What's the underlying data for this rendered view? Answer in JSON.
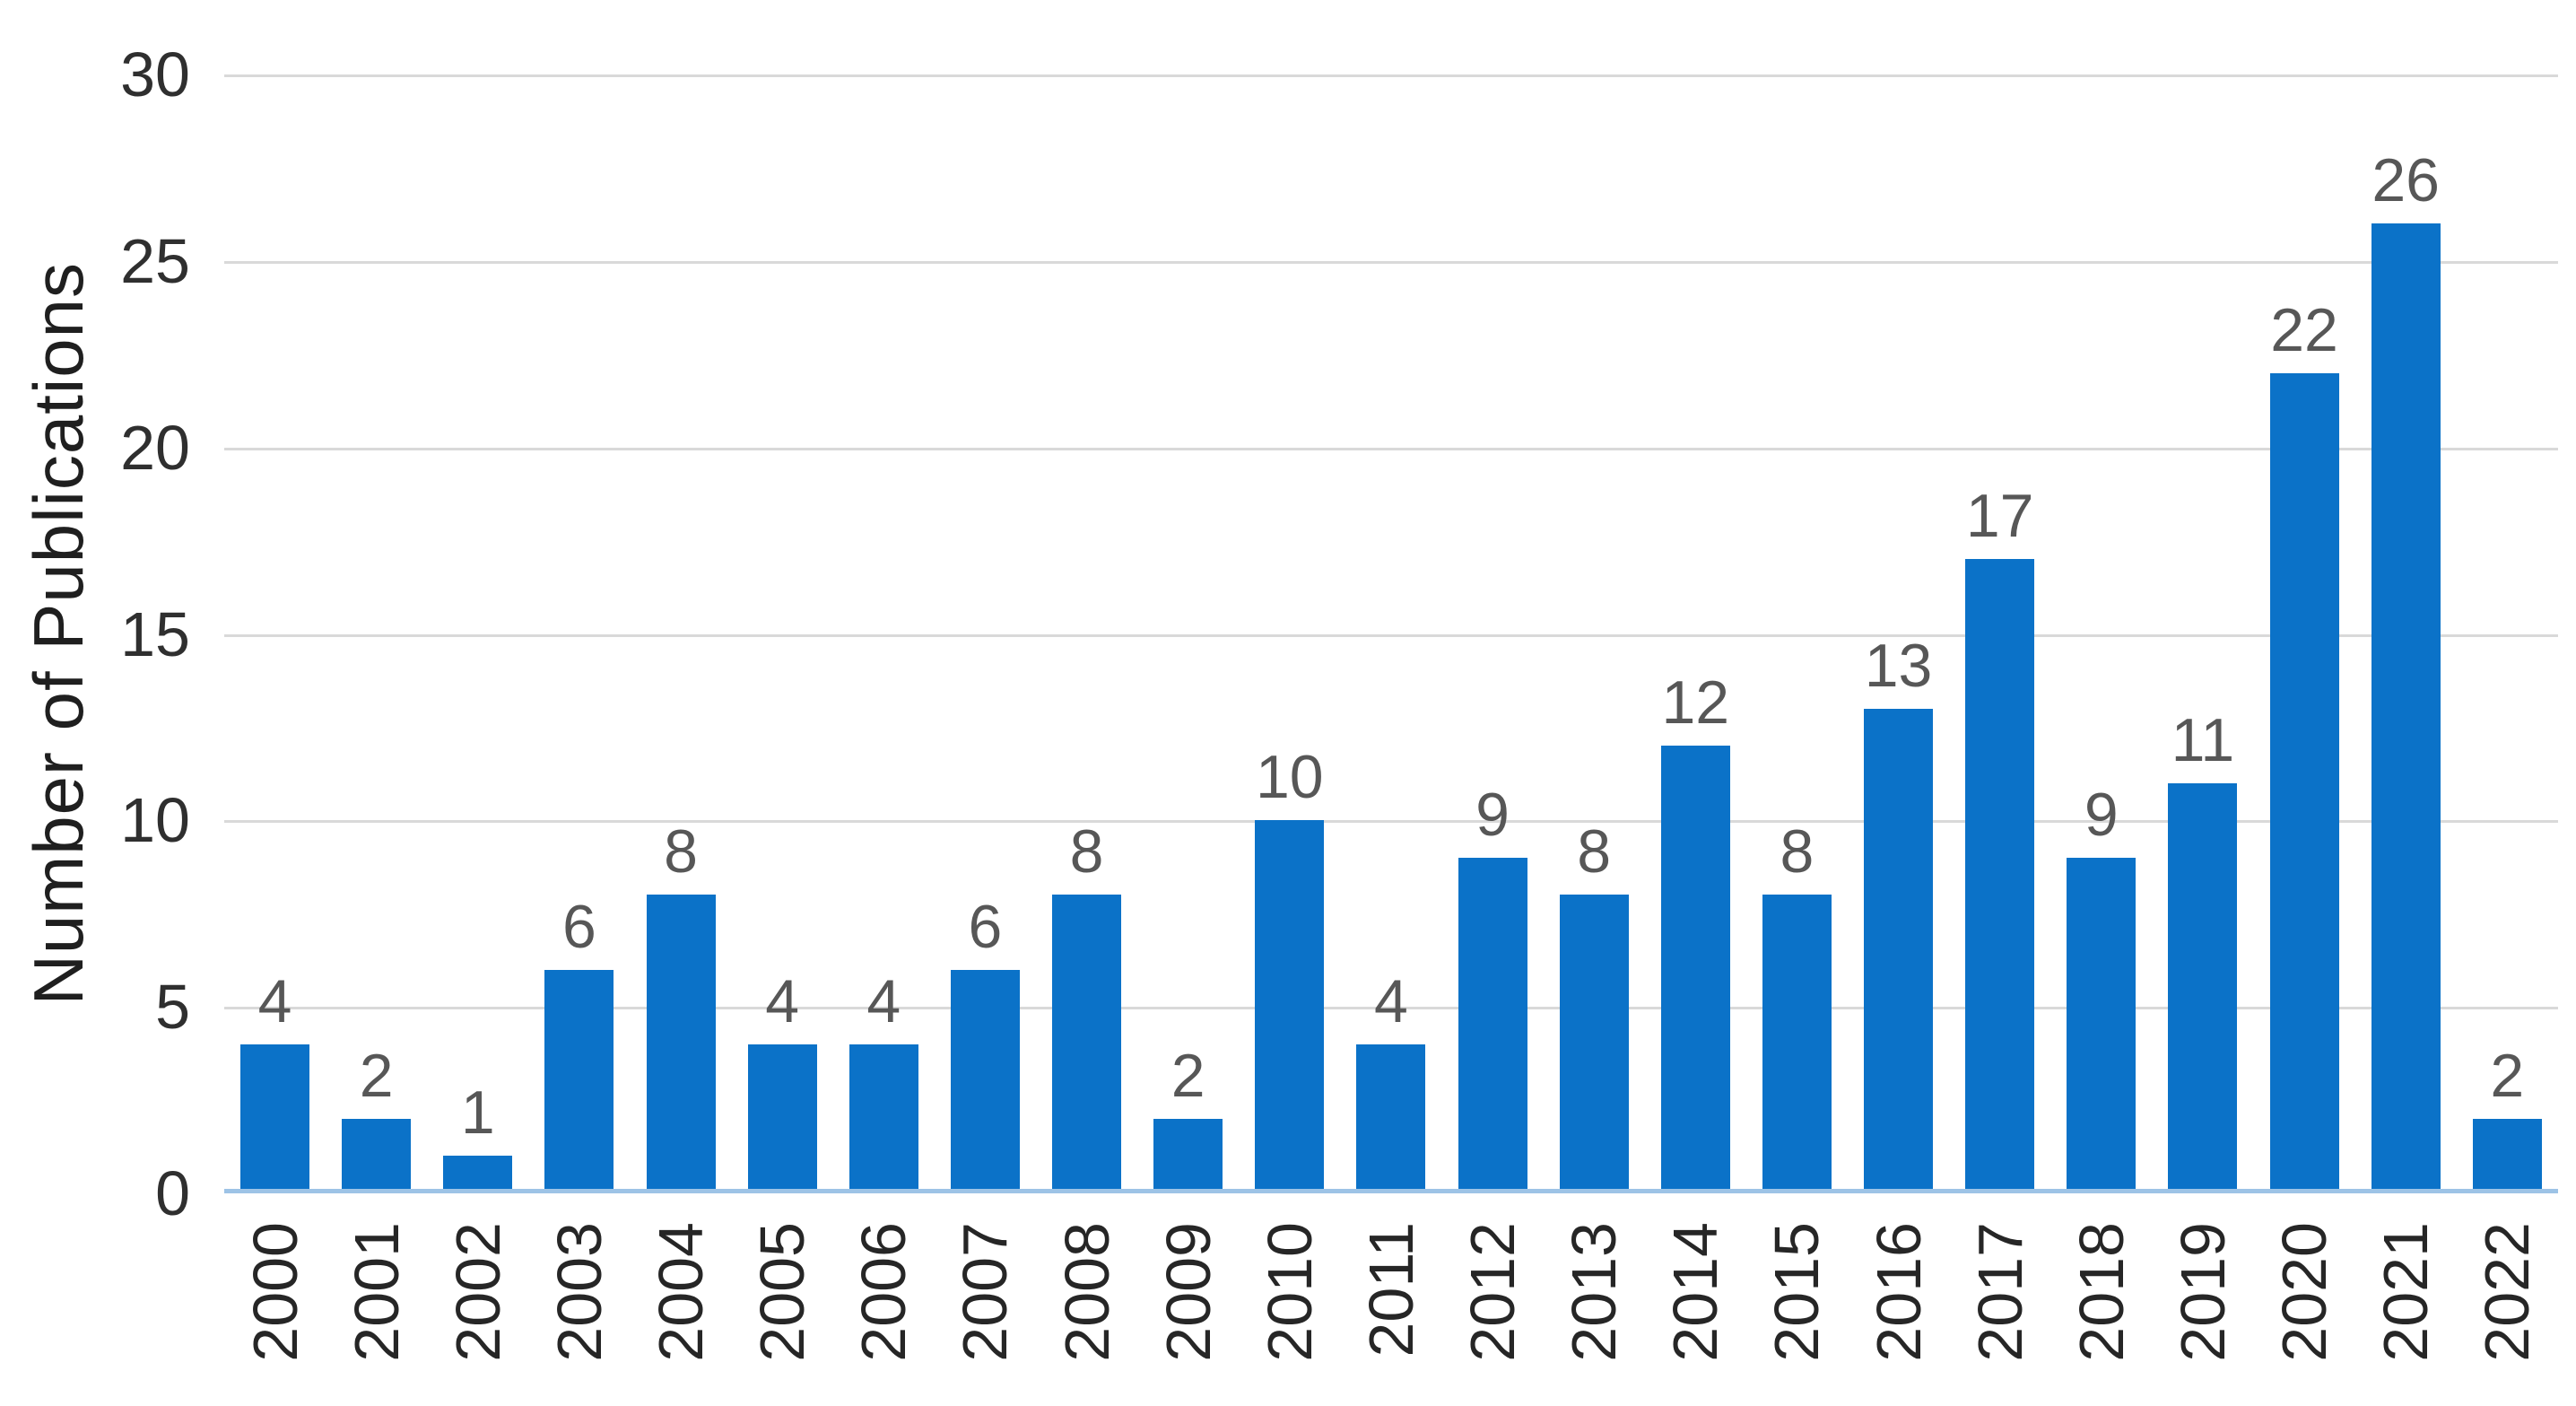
{
  "figure": {
    "background": "#ffffff"
  },
  "chart_data": {
    "type": "bar",
    "title": "",
    "xlabel": "",
    "ylabel": "Number of Publications",
    "categories": [
      "2000",
      "2001",
      "2002",
      "2003",
      "2004",
      "2005",
      "2006",
      "2007",
      "2008",
      "2009",
      "2010",
      "2011",
      "2012",
      "2013",
      "2014",
      "2015",
      "2016",
      "2017",
      "2018",
      "2019",
      "2020",
      "2021",
      "2022"
    ],
    "values": [
      4,
      2,
      1,
      6,
      8,
      4,
      4,
      6,
      8,
      2,
      10,
      4,
      9,
      8,
      12,
      8,
      13,
      17,
      9,
      11,
      22,
      26,
      2
    ],
    "ylim": [
      0,
      30
    ],
    "yticks": [
      0,
      5,
      10,
      15,
      20,
      25,
      30
    ],
    "grid": true,
    "legend": false,
    "data_labels": true,
    "colors": {
      "bar": "#0b72c8",
      "baseline": "#9dc3e6",
      "gridline": "#d9d9d9",
      "value_label": "#575757",
      "tick_label": "#2f2f2f",
      "axis_title": "#1f1f1f"
    }
  }
}
